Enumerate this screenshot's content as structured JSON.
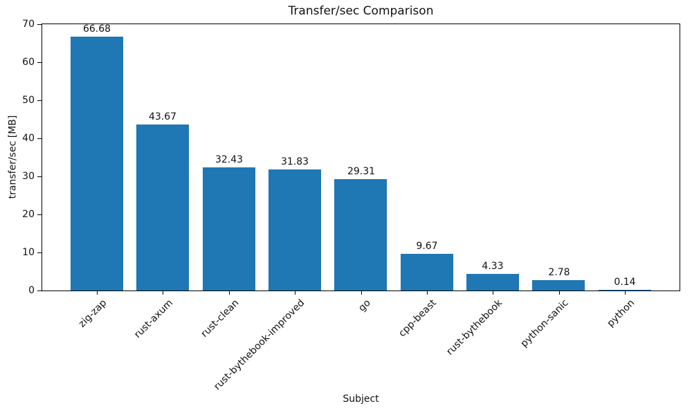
{
  "chart_data": {
    "type": "bar",
    "title": "Transfer/sec Comparison",
    "xlabel": "Subject",
    "ylabel": "transfer/sec [MB]",
    "categories": [
      "zig-zap",
      "rust-axum",
      "rust-clean",
      "rust-bythebook-improved",
      "go",
      "cpp-beast",
      "rust-bythebook",
      "python-sanic",
      "python"
    ],
    "values": [
      66.68,
      43.67,
      32.43,
      31.83,
      29.31,
      9.67,
      4.33,
      2.78,
      0.14
    ],
    "value_labels": [
      "66.68",
      "43.67",
      "32.43",
      "31.83",
      "29.31",
      "9.67",
      "4.33",
      "2.78",
      "0.14"
    ],
    "ylim": [
      0,
      70
    ],
    "y_ticks": [
      0,
      10,
      20,
      30,
      40,
      50,
      60,
      70
    ],
    "bar_color": "#1f77b4",
    "grid": false,
    "legend": "none",
    "x_tick_rotation_deg": 45
  }
}
